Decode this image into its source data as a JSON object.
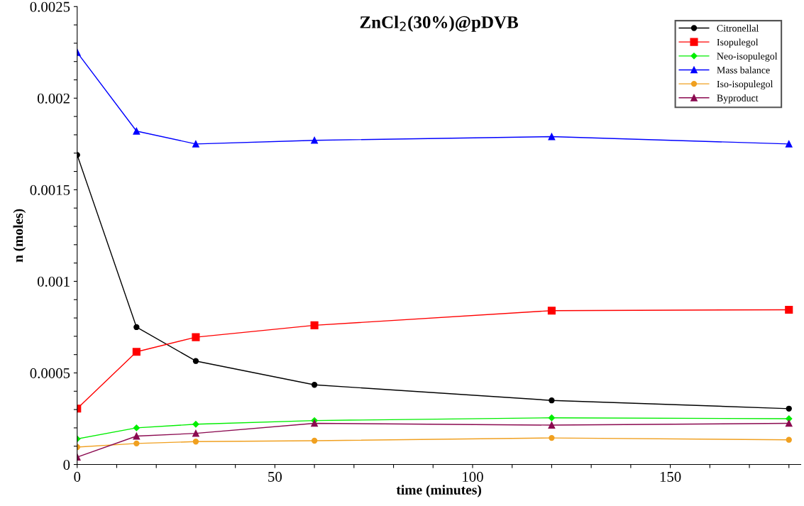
{
  "chart_data": {
    "type": "line",
    "title": "ZnCl$_{2}$(30%)@pDVB",
    "xlabel": "time (minutes)",
    "ylabel": "n (moles)",
    "x": [
      0,
      15,
      30,
      60,
      120,
      180
    ],
    "xlim": [
      0,
      183
    ],
    "xticks": [
      0,
      {
        "value": 10,
        "label": null
      },
      {
        "value": 20,
        "label": null
      },
      {
        "value": 30,
        "label": null
      },
      {
        "value": 40,
        "label": null
      },
      50,
      {
        "value": 60,
        "label": null
      },
      {
        "value": 70,
        "label": null
      },
      {
        "value": 80,
        "label": null
      },
      {
        "value": 90,
        "label": null
      },
      100,
      {
        "value": 110,
        "label": null
      },
      {
        "value": 120,
        "label": null
      },
      {
        "value": 130,
        "label": null
      },
      {
        "value": 140,
        "label": null
      },
      150,
      {
        "value": 160,
        "label": null
      },
      {
        "value": 170,
        "label": null
      },
      {
        "value": 180,
        "label": null
      }
    ],
    "ylim": [
      0,
      0.0025
    ],
    "yticks": [
      0,
      {
        "value": 0.0001,
        "label": null
      },
      {
        "value": 0.0002,
        "label": null
      },
      {
        "value": 0.0003,
        "label": null
      },
      {
        "value": 0.0004,
        "label": null
      },
      0.0005,
      {
        "value": 0.0006,
        "label": null
      },
      {
        "value": 0.0007,
        "label": null
      },
      {
        "value": 0.0008,
        "label": null
      },
      {
        "value": 0.0009,
        "label": null
      },
      0.001,
      {
        "value": 0.0011,
        "label": null
      },
      {
        "value": 0.0012,
        "label": null
      },
      {
        "value": 0.0013,
        "label": null
      },
      {
        "value": 0.0014,
        "label": null
      },
      0.0015,
      {
        "value": 0.0016,
        "label": null
      },
      {
        "value": 0.0017,
        "label": null
      },
      {
        "value": 0.0018,
        "label": null
      },
      {
        "value": 0.0019,
        "label": null
      },
      0.002,
      {
        "value": 0.0021,
        "label": null
      },
      {
        "value": 0.0022,
        "label": null
      },
      {
        "value": 0.0023,
        "label": null
      },
      {
        "value": 0.0024,
        "label": null
      },
      0.0025
    ],
    "grid": false,
    "legend": "top right",
    "line_style": "solid",
    "series": [
      {
        "name": "Citronellal",
        "color": "#000000",
        "marker": "circle",
        "values": [
          0.00169,
          0.00075,
          0.000565,
          0.000435,
          0.00035,
          0.000305
        ]
      },
      {
        "name": "Isopulegol",
        "color": "#ff0000",
        "marker": "square",
        "values": [
          0.000305,
          0.000615,
          0.000695,
          0.00076,
          0.00084,
          0.000845
        ]
      },
      {
        "name": "Neo-isopulegol",
        "color": "#00ee00",
        "marker": "diamond",
        "values": [
          0.00014,
          0.0002,
          0.00022,
          0.00024,
          0.000255,
          0.00025
        ]
      },
      {
        "name": "Mass balance",
        "color": "#0000ff",
        "marker": "triangle",
        "values": [
          0.00225,
          0.00182,
          0.00175,
          0.00177,
          0.00179,
          0.00175
        ]
      },
      {
        "name": "Iso-isopulegol",
        "color": "#f0a020",
        "marker": "circle",
        "values": [
          9.5e-05,
          0.000115,
          0.000125,
          0.00013,
          0.000145,
          0.000135
        ]
      },
      {
        "name": "Byproduct",
        "color": "#8b0a50",
        "marker": "triangle",
        "values": [
          4e-05,
          0.000155,
          0.00017,
          0.000225,
          0.000215,
          0.000225
        ]
      }
    ]
  }
}
